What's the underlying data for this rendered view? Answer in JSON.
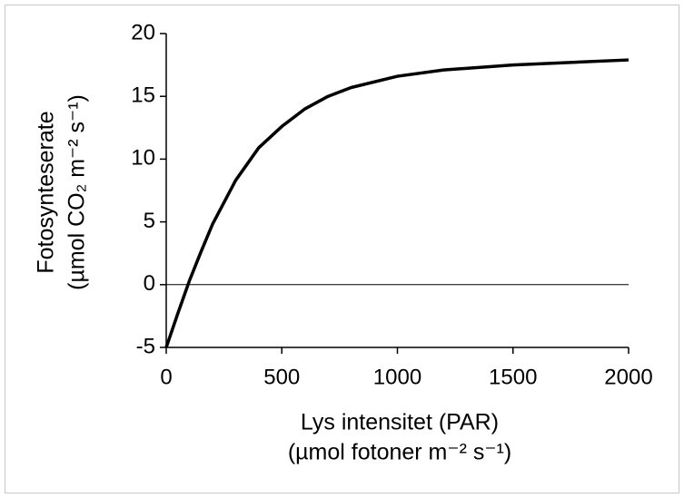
{
  "chart_data": {
    "type": "line",
    "y_label": [
      "Fotosynteserate",
      "(µmol CO₂ m⁻² s⁻¹)"
    ],
    "x_label": [
      "Lys intensitet (PAR)",
      "(µmol fotoner m⁻² s⁻¹)"
    ],
    "x": [
      0,
      50,
      100,
      150,
      200,
      300,
      400,
      500,
      600,
      700,
      800,
      1000,
      1200,
      1500,
      2000
    ],
    "values": [
      -5,
      -2.3,
      0.3,
      2.6,
      4.8,
      8.3,
      10.9,
      12.6,
      14.0,
      15.0,
      15.7,
      16.6,
      17.1,
      17.5,
      17.9
    ],
    "color": "#000000",
    "reference_line": 0,
    "xlim": [
      0,
      2000
    ],
    "xticks": [
      0,
      500,
      1000,
      1500,
      2000
    ],
    "ylim": [
      -5,
      20
    ],
    "yticks": [
      -5,
      0,
      5,
      10,
      15,
      20
    ]
  }
}
